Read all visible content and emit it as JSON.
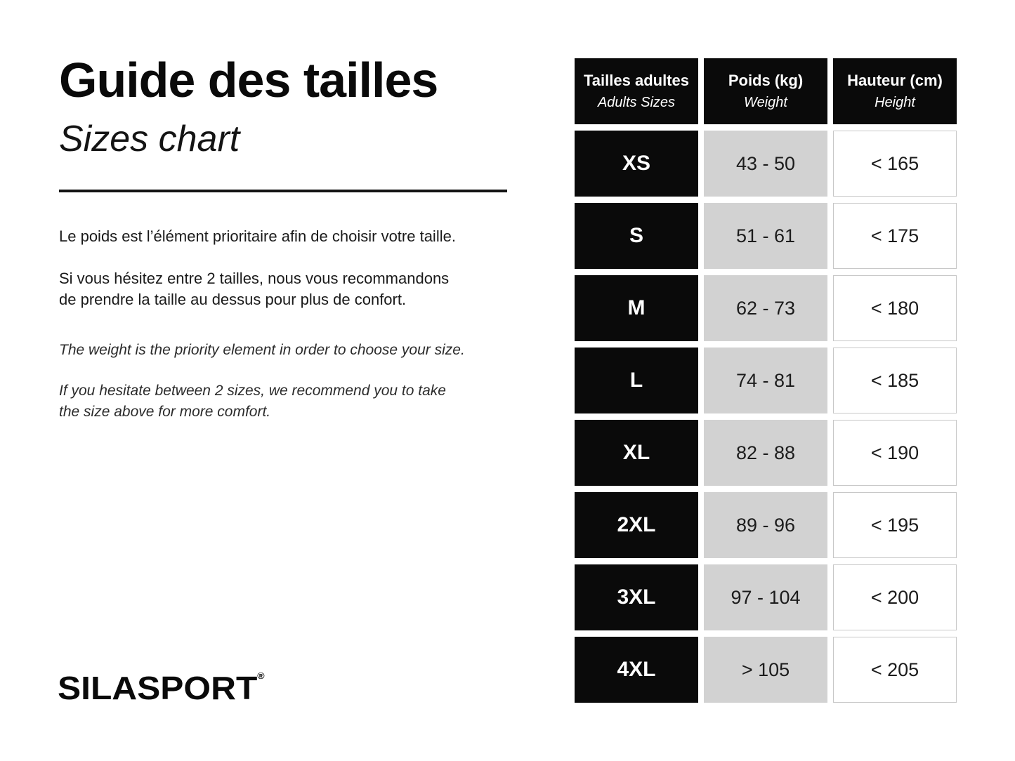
{
  "page": {
    "title": "Guide des tailles",
    "subtitle": "Sizes chart",
    "paragraphs_fr": [
      "Le poids est l’élément prioritaire afin de choisir votre taille.",
      "Si vous hésitez entre 2 tailles, nous vous recommandons\nde prendre la taille au dessus pour plus de confort."
    ],
    "paragraphs_en": [
      "The weight is the priority element in order to choose your size.",
      "If you hesitate between 2 sizes, we recommend you to take\nthe size above for more comfort."
    ],
    "logo_text": "SILASPORT",
    "logo_mark": "®"
  },
  "table": {
    "headers": [
      {
        "main": "Tailles adultes",
        "sub": "Adults Sizes"
      },
      {
        "main": "Poids (kg)",
        "sub": "Weight"
      },
      {
        "main": "Hauteur (cm)",
        "sub": "Height"
      }
    ],
    "rows": [
      {
        "size": "XS",
        "weight": "43 - 50",
        "height": "< 165"
      },
      {
        "size": "S",
        "weight": "51 - 61",
        "height": "< 175"
      },
      {
        "size": "M",
        "weight": "62 - 73",
        "height": "< 180"
      },
      {
        "size": "L",
        "weight": "74 - 81",
        "height": "< 185"
      },
      {
        "size": "XL",
        "weight": "82 - 88",
        "height": "< 190"
      },
      {
        "size": "2XL",
        "weight": "89 - 96",
        "height": "< 195"
      },
      {
        "size": "3XL",
        "weight": "97 - 104",
        "height": "< 200"
      },
      {
        "size": "4XL",
        "weight": "> 105",
        "height": "< 205"
      }
    ],
    "colors": {
      "header_bg": "#0a0a0a",
      "header_text": "#ffffff",
      "size_cell_bg": "#0a0a0a",
      "size_cell_text": "#ffffff",
      "weight_cell_bg": "#d2d2d2",
      "height_cell_bg": "#ffffff",
      "height_cell_border": "#c8c8c8",
      "body_text": "#1a1a1a"
    }
  }
}
